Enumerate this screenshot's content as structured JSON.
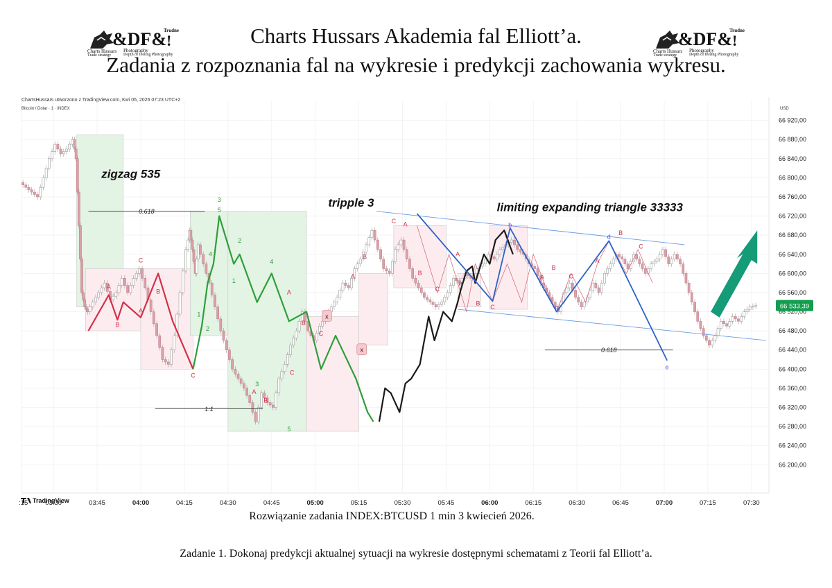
{
  "header": {
    "title_line1": "Charts Hussars Akademia fal Elliott’a.",
    "title_line2": "Zadania z rozpoznania fal na wykresie i predykcji zachowania wykresu."
  },
  "logo": {
    "mark": "&DF&",
    "line_a": "Charts Hussars",
    "line_b": "Trade strategy",
    "line_c": "Photography",
    "line_d": "Depth of feeling Photography",
    "tag": "Trudne",
    "bang": "!"
  },
  "colors": {
    "red_wave": "#d42f4a",
    "green_wave": "#2e9e3a",
    "black_wave": "#1a1a1a",
    "blue_wave": "#2c62c8",
    "pink_box": "#fcecef",
    "green_box": "#e3f3e4",
    "arrow": "#159b77",
    "price_badge": "#129d4f"
  },
  "chart_data": {
    "type": "line",
    "header_credit": "ChartsHussars utworzono z TradingView.com, Kwi 05, 2026 07:23 UTC+2",
    "symbol": "Bitcoin / Dolar · 1 · INDEX",
    "currency": "USD",
    "footer_brand": "TradingView",
    "last_price": "66 533,39",
    "ylim": [
      66170,
      66960
    ],
    "yticks": [
      66200,
      66240,
      66280,
      66320,
      66360,
      66400,
      66440,
      66480,
      66520,
      66560,
      66600,
      66640,
      66680,
      66720,
      66760,
      66800,
      66840,
      66880,
      66920
    ],
    "ytick_labels": [
      "66 200,00",
      "66 240,00",
      "66 280,00",
      "66 320,00",
      "66 360,00",
      "66 400,00",
      "66 440,00",
      "66 480,00",
      "66 520,00",
      "66 560,00",
      "66 600,00",
      "66 640,00",
      "66 680,00",
      "66 720,00",
      "66 760,00",
      "66 800,00",
      "66 840,00",
      "66 880,00",
      "66 920,00"
    ],
    "xlim": [
      199,
      456
    ],
    "xticks": [
      {
        "t": 199,
        "label": "3:15",
        "bold": false
      },
      {
        "t": 210,
        "label": "03:30",
        "bold": false
      },
      {
        "t": 225,
        "label": "03:45",
        "bold": false
      },
      {
        "t": 240,
        "label": "04:00",
        "bold": true
      },
      {
        "t": 255,
        "label": "04:15",
        "bold": false
      },
      {
        "t": 270,
        "label": "04:30",
        "bold": false
      },
      {
        "t": 285,
        "label": "04:45",
        "bold": false
      },
      {
        "t": 300,
        "label": "05:00",
        "bold": true
      },
      {
        "t": 315,
        "label": "05:15",
        "bold": false
      },
      {
        "t": 330,
        "label": "05:30",
        "bold": false
      },
      {
        "t": 345,
        "label": "05:45",
        "bold": false
      },
      {
        "t": 360,
        "label": "06:00",
        "bold": true
      },
      {
        "t": 375,
        "label": "06:15",
        "bold": false
      },
      {
        "t": 390,
        "label": "06:30",
        "bold": false
      },
      {
        "t": 405,
        "label": "06:45",
        "bold": false
      },
      {
        "t": 420,
        "label": "07:00",
        "bold": true
      },
      {
        "t": 435,
        "label": "07:15",
        "bold": false
      },
      {
        "t": 450,
        "label": "07:30",
        "bold": false
      }
    ],
    "price_path": [
      [
        199,
        66790
      ],
      [
        201,
        66780
      ],
      [
        203,
        66770
      ],
      [
        205,
        66760
      ],
      [
        207,
        66800
      ],
      [
        209,
        66840
      ],
      [
        211,
        66870
      ],
      [
        213,
        66850
      ],
      [
        215,
        66860
      ],
      [
        217,
        66880
      ],
      [
        218,
        66840
      ],
      [
        219,
        66700
      ],
      [
        220,
        66560
      ],
      [
        221,
        66530
      ],
      [
        222,
        66520
      ],
      [
        224,
        66540
      ],
      [
        226,
        66560
      ],
      [
        228,
        66580
      ],
      [
        230,
        66545
      ],
      [
        232,
        66560
      ],
      [
        234,
        66590
      ],
      [
        236,
        66560
      ],
      [
        238,
        66590
      ],
      [
        240,
        66610
      ],
      [
        242,
        66570
      ],
      [
        244,
        66520
      ],
      [
        246,
        66470
      ],
      [
        248,
        66420
      ],
      [
        250,
        66410
      ],
      [
        252,
        66470
      ],
      [
        254,
        66560
      ],
      [
        256,
        66650
      ],
      [
        257,
        66690
      ],
      [
        258,
        66650
      ],
      [
        259,
        66600
      ],
      [
        260,
        66660
      ],
      [
        262,
        66620
      ],
      [
        264,
        66580
      ],
      [
        266,
        66530
      ],
      [
        268,
        66480
      ],
      [
        270,
        66440
      ],
      [
        272,
        66400
      ],
      [
        274,
        66380
      ],
      [
        276,
        66360
      ],
      [
        278,
        66330
      ],
      [
        280,
        66290
      ],
      [
        282,
        66350
      ],
      [
        284,
        66330
      ],
      [
        286,
        66320
      ],
      [
        288,
        66380
      ],
      [
        290,
        66410
      ],
      [
        292,
        66450
      ],
      [
        294,
        66480
      ],
      [
        296,
        66520
      ],
      [
        298,
        66480
      ],
      [
        300,
        66460
      ],
      [
        302,
        66490
      ],
      [
        304,
        66510
      ],
      [
        306,
        66530
      ],
      [
        308,
        66550
      ],
      [
        310,
        66580
      ],
      [
        312,
        66570
      ],
      [
        314,
        66610
      ],
      [
        316,
        66630
      ],
      [
        318,
        66660
      ],
      [
        320,
        66690
      ],
      [
        322,
        66650
      ],
      [
        324,
        66610
      ],
      [
        326,
        66600
      ],
      [
        328,
        66650
      ],
      [
        330,
        66670
      ],
      [
        332,
        66630
      ],
      [
        334,
        66590
      ],
      [
        336,
        66570
      ],
      [
        338,
        66550
      ],
      [
        340,
        66540
      ],
      [
        342,
        66530
      ],
      [
        344,
        66540
      ],
      [
        346,
        66560
      ],
      [
        348,
        66590
      ],
      [
        350,
        66580
      ],
      [
        352,
        66600
      ],
      [
        354,
        66590
      ],
      [
        356,
        66610
      ],
      [
        358,
        66620
      ],
      [
        360,
        66640
      ],
      [
        362,
        66630
      ],
      [
        364,
        66650
      ],
      [
        366,
        66660
      ],
      [
        368,
        66670
      ],
      [
        370,
        66650
      ],
      [
        372,
        66640
      ],
      [
        374,
        66620
      ],
      [
        376,
        66610
      ],
      [
        378,
        66580
      ],
      [
        380,
        66560
      ],
      [
        382,
        66540
      ],
      [
        384,
        66520
      ],
      [
        386,
        66560
      ],
      [
        388,
        66580
      ],
      [
        390,
        66550
      ],
      [
        392,
        66530
      ],
      [
        394,
        66550
      ],
      [
        396,
        66580
      ],
      [
        398,
        66560
      ],
      [
        400,
        66600
      ],
      [
        402,
        66620
      ],
      [
        404,
        66640
      ],
      [
        406,
        66630
      ],
      [
        408,
        66610
      ],
      [
        410,
        66640
      ],
      [
        412,
        66620
      ],
      [
        414,
        66600
      ],
      [
        416,
        66620
      ],
      [
        418,
        66630
      ],
      [
        420,
        66650
      ],
      [
        422,
        66620
      ],
      [
        424,
        66640
      ],
      [
        426,
        66620
      ],
      [
        428,
        66580
      ],
      [
        430,
        66540
      ],
      [
        432,
        66500
      ],
      [
        434,
        66470
      ],
      [
        436,
        66450
      ],
      [
        438,
        66470
      ],
      [
        440,
        66500
      ],
      [
        442,
        66490
      ],
      [
        444,
        66510
      ],
      [
        446,
        66500
      ],
      [
        448,
        66520
      ],
      [
        450,
        66530
      ],
      [
        452,
        66533
      ]
    ],
    "series": [
      {
        "name": "",
        "color": "red",
        "points": [
          [
            222,
            66480
          ],
          [
            229,
            66555
          ],
          [
            232,
            66503
          ],
          [
            234,
            66540
          ],
          [
            240,
            66508
          ],
          [
            246,
            66600
          ],
          [
            251,
            66500
          ],
          [
            258,
            66400
          ]
        ]
      },
      {
        "name": "",
        "color": "green",
        "points": [
          [
            258,
            66400
          ],
          [
            261,
            66490
          ],
          [
            263,
            66580
          ],
          [
            265,
            66620
          ],
          [
            267,
            66720
          ],
          [
            272,
            66620
          ],
          [
            274,
            66640
          ],
          [
            280,
            66540
          ],
          [
            285,
            66600
          ],
          [
            291,
            66500
          ],
          [
            297,
            66520
          ],
          [
            302,
            66400
          ],
          [
            307,
            66470
          ],
          [
            314,
            66380
          ],
          [
            318,
            66310
          ],
          [
            320,
            66290
          ]
        ]
      },
      {
        "name": "",
        "color": "black",
        "points": [
          [
            322,
            66290
          ],
          [
            324,
            66360
          ],
          [
            326,
            66350
          ],
          [
            329,
            66310
          ],
          [
            331,
            66370
          ],
          [
            333,
            66380
          ],
          [
            336,
            66410
          ],
          [
            339,
            66510
          ],
          [
            341,
            66460
          ],
          [
            344,
            66520
          ],
          [
            347,
            66500
          ],
          [
            349,
            66540
          ],
          [
            350,
            66565
          ],
          [
            352,
            66605
          ],
          [
            354,
            66615
          ],
          [
            355,
            66580
          ],
          [
            358,
            66640
          ],
          [
            360,
            66620
          ],
          [
            362,
            66670
          ],
          [
            365,
            66690
          ],
          [
            368,
            66640
          ]
        ]
      },
      {
        "name": "",
        "color": "blue",
        "points": [
          [
            335,
            66725
          ],
          [
            361,
            66542
          ],
          [
            367,
            66695
          ],
          [
            383,
            66520
          ],
          [
            401,
            66668
          ],
          [
            421,
            66418
          ]
        ]
      }
    ],
    "annotations": [
      {
        "text": "zigzag 535",
        "kind": "title"
      },
      {
        "text": "tripple 3",
        "kind": "title"
      },
      {
        "text": "limiting expanding triangle 33333",
        "kind": "title"
      },
      {
        "text": "0.618",
        "kind": "level"
      },
      {
        "text": "1:1",
        "kind": "level"
      },
      {
        "text": "0.618",
        "kind": "level"
      }
    ],
    "wave_labels": [
      "A",
      "B",
      "C",
      "A",
      "B",
      "C",
      "1",
      "2",
      "3",
      "4",
      "5",
      "1",
      "2",
      "3",
      "4",
      "5",
      "A",
      "B",
      "C",
      "A",
      "B",
      "C",
      "x",
      "x",
      "A",
      "B",
      "C",
      "a",
      "b",
      "c",
      "d",
      "e",
      "A",
      "B",
      "C",
      "A",
      "B",
      "C",
      "A",
      "B",
      "C",
      "A",
      "B",
      "C"
    ],
    "grid": true,
    "legend": "none"
  },
  "footer": {
    "caption1": "Rozwiązanie zadania INDEX:BTCUSD 1 min 3 kwiecień 2026.",
    "caption2": "Zadanie 1. Dokonaj predykcji aktualnej sytuacji na wykresie  dostępnymi  schematami  z Teorii fal Elliott’a."
  }
}
